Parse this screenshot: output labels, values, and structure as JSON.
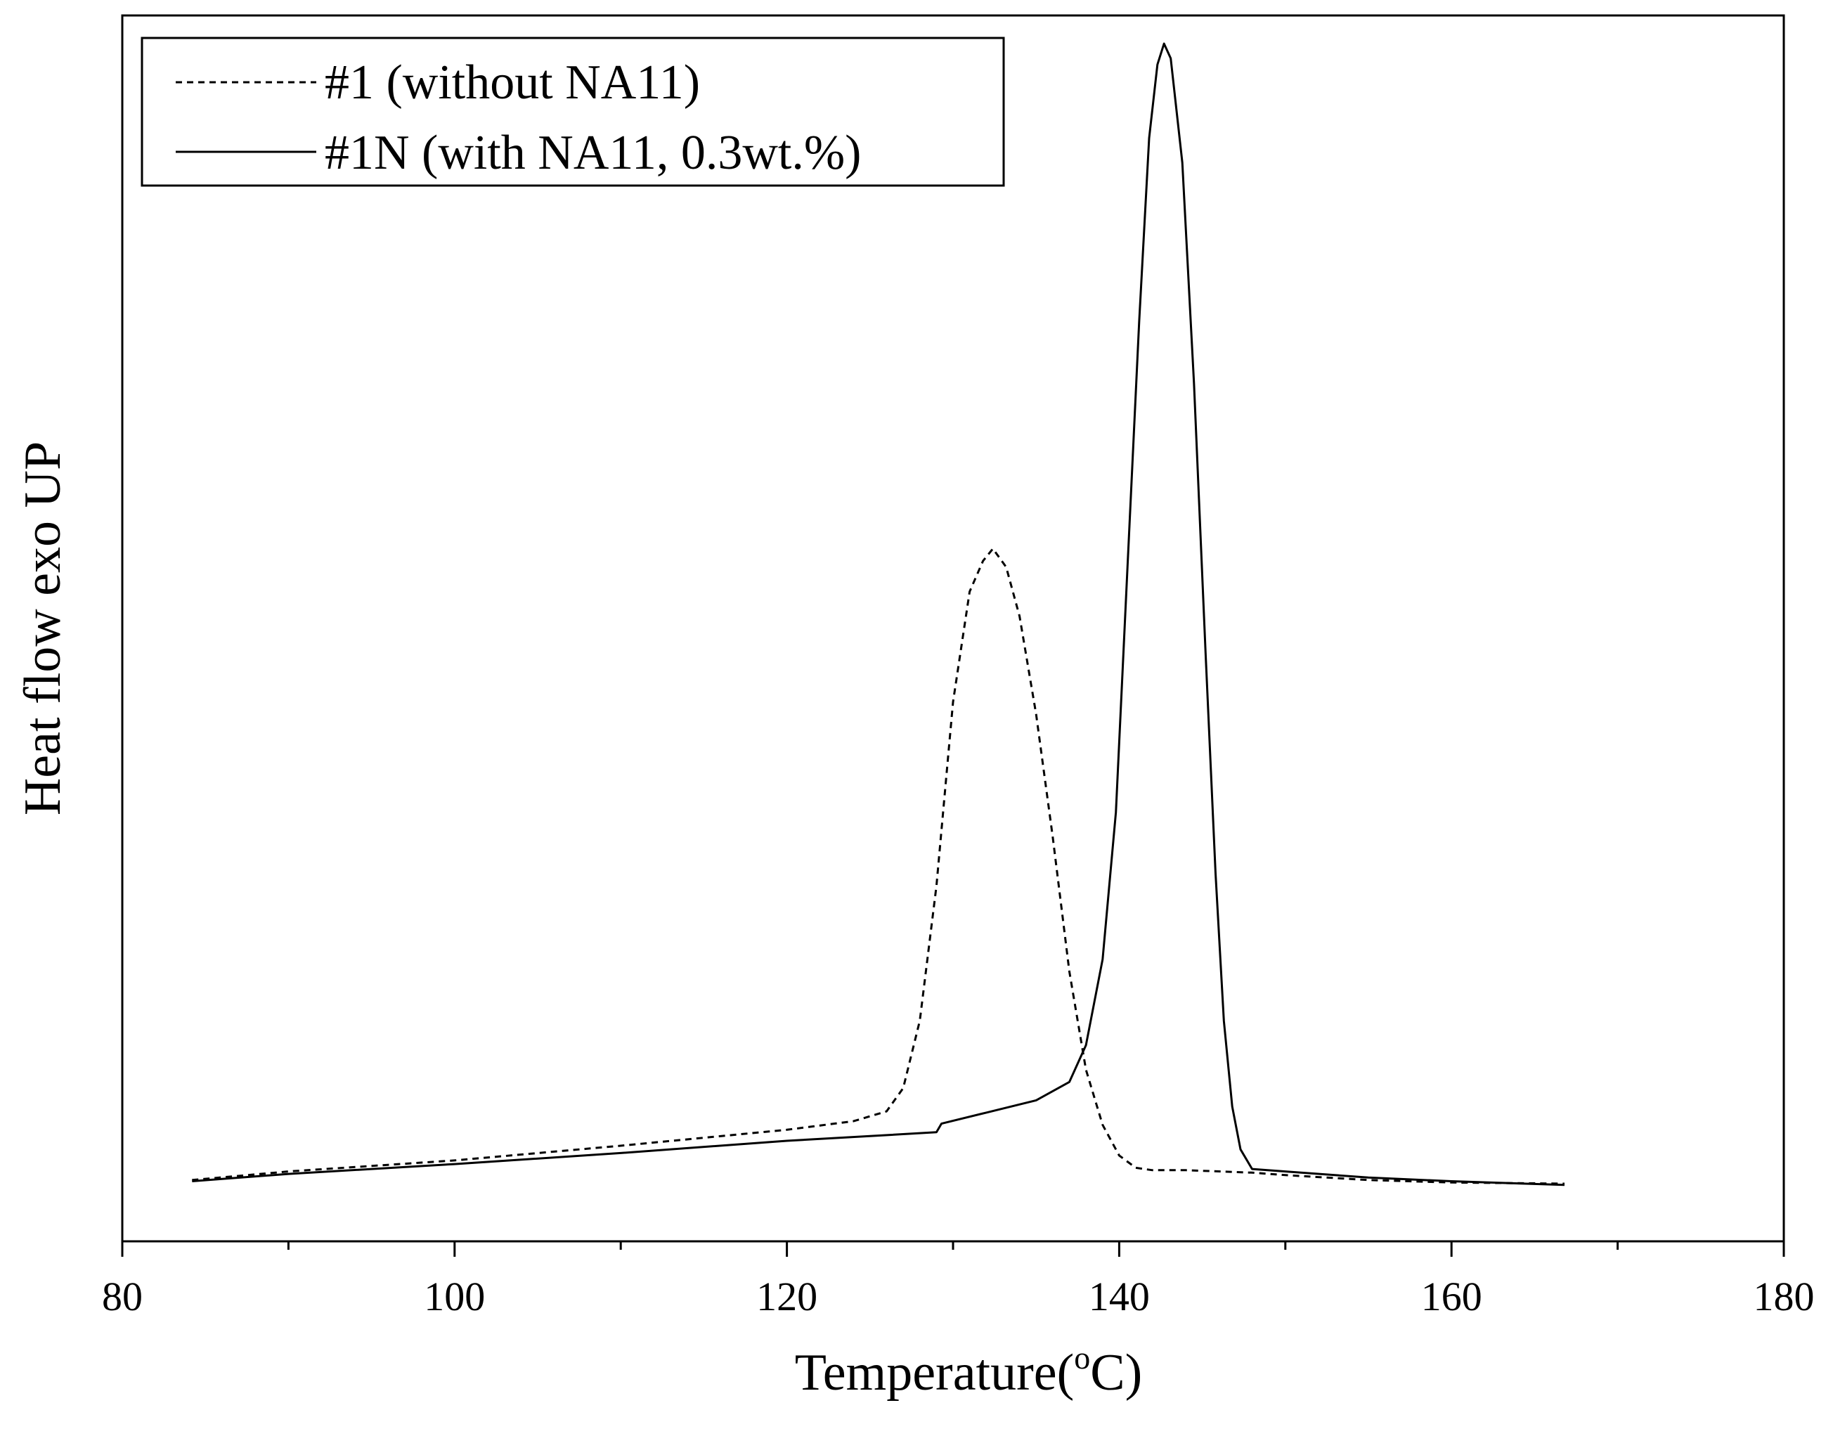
{
  "chart_data": {
    "type": "line",
    "xlabel": "Temperature(",
    "xlabel_unit_sup": "o",
    "xlabel_unit": "C)",
    "ylabel": "Heat flow exo UP",
    "xlim": [
      80,
      180
    ],
    "ylim": [
      0,
      100
    ],
    "x_ticks": [
      80,
      100,
      120,
      140,
      160,
      180
    ],
    "x_ticks_minor": [
      90,
      110,
      130,
      150,
      170
    ],
    "grid": false,
    "legend_position": "top-left",
    "series": [
      {
        "name": "#1 (without NA11)",
        "line_style": "dashed",
        "color": "#000000",
        "points": [
          [
            84.2,
            5.0
          ],
          [
            90,
            5.7
          ],
          [
            100,
            6.6
          ],
          [
            110,
            7.8
          ],
          [
            120,
            9.1
          ],
          [
            124,
            9.8
          ],
          [
            126,
            10.6
          ],
          [
            127,
            12.5
          ],
          [
            128,
            18.0
          ],
          [
            129,
            29.0
          ],
          [
            130,
            44.0
          ],
          [
            131,
            53.0
          ],
          [
            131.8,
            55.5
          ],
          [
            132.4,
            56.5
          ],
          [
            133.2,
            55.0
          ],
          [
            134,
            51.0
          ],
          [
            135,
            43.0
          ],
          [
            136,
            33.0
          ],
          [
            137,
            22.0
          ],
          [
            138,
            14.0
          ],
          [
            139,
            9.5
          ],
          [
            140,
            7.0
          ],
          [
            141,
            6.0
          ],
          [
            142,
            5.8
          ],
          [
            144,
            5.8
          ],
          [
            148,
            5.6
          ],
          [
            150,
            5.4
          ],
          [
            155,
            5.0
          ],
          [
            160,
            4.8
          ],
          [
            166.8,
            4.7
          ]
        ]
      },
      {
        "name": "#1N (with NA11, 0.3wt.%)",
        "line_style": "solid",
        "color": "#000000",
        "points": [
          [
            84.2,
            4.9
          ],
          [
            90,
            5.5
          ],
          [
            100,
            6.3
          ],
          [
            110,
            7.2
          ],
          [
            120,
            8.2
          ],
          [
            129,
            8.9
          ],
          [
            129.3,
            9.6
          ],
          [
            132,
            10.5
          ],
          [
            135,
            11.5
          ],
          [
            137,
            13.0
          ],
          [
            138,
            16.0
          ],
          [
            139,
            23.0
          ],
          [
            139.8,
            35.0
          ],
          [
            140.5,
            55.0
          ],
          [
            141.2,
            75.0
          ],
          [
            141.8,
            90.0
          ],
          [
            142.3,
            96.0
          ],
          [
            142.7,
            97.7
          ],
          [
            143.1,
            96.5
          ],
          [
            143.8,
            88.0
          ],
          [
            144.5,
            70.0
          ],
          [
            145.2,
            48.0
          ],
          [
            145.8,
            30.0
          ],
          [
            146.3,
            18.0
          ],
          [
            146.8,
            11.0
          ],
          [
            147.3,
            7.5
          ],
          [
            148,
            5.9
          ],
          [
            150,
            5.7
          ],
          [
            155,
            5.2
          ],
          [
            160,
            4.9
          ],
          [
            166.8,
            4.6
          ]
        ]
      }
    ]
  }
}
